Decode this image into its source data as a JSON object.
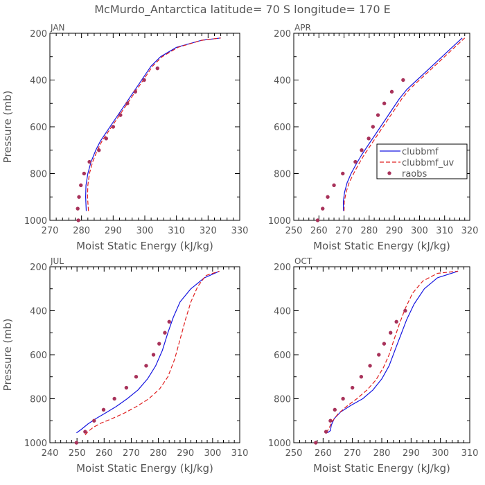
{
  "figure": {
    "title": "McMurdo_Antarctica   latitude= 70 S longitude= 170 E"
  },
  "colors": {
    "clubbmf": "#1515e0",
    "clubbmf_uv": "#e02020",
    "raobs": "#a8325a",
    "axis": "#000000",
    "text": "#555555"
  },
  "chart_data": [
    {
      "type": "line",
      "panel_label": "JAN",
      "xlabel": "Moist Static Energy (kJ/kg)",
      "ylabel": "Pressure (mb)",
      "xlim": [
        270,
        330
      ],
      "xticks": [
        270,
        280,
        290,
        300,
        310,
        320,
        330
      ],
      "ylim": [
        1000,
        200
      ],
      "yticks": [
        200,
        400,
        600,
        800,
        1000
      ],
      "show_legend": false,
      "series": [
        {
          "name": "clubbmf",
          "style": "solid",
          "x": [
            281.5,
            281.3,
            281.4,
            282,
            283,
            284.5,
            286,
            288,
            290,
            292,
            294,
            296,
            298,
            300,
            302,
            305,
            310,
            318,
            324
          ],
          "y": [
            960,
            900,
            850,
            800,
            750,
            700,
            660,
            620,
            580,
            540,
            500,
            460,
            420,
            380,
            340,
            300,
            260,
            230,
            220
          ]
        },
        {
          "name": "clubbmf_uv",
          "style": "dashed",
          "x": [
            282.2,
            281.9,
            282,
            282.5,
            283.5,
            285,
            286.5,
            288.5,
            290.5,
            292.5,
            294.5,
            296.5,
            298.5,
            300.5,
            302.5,
            305.5,
            310.5,
            318,
            324
          ],
          "y": [
            960,
            900,
            850,
            800,
            750,
            700,
            660,
            620,
            580,
            540,
            500,
            460,
            420,
            380,
            340,
            300,
            260,
            230,
            220
          ]
        },
        {
          "name": "raobs",
          "style": "markers",
          "x": [
            279,
            278.8,
            279.2,
            279.8,
            280.8,
            282.5,
            285.5,
            287.8,
            290,
            292.3,
            294.5,
            297,
            299.8,
            304
          ],
          "y": [
            1000,
            950,
            900,
            850,
            800,
            750,
            700,
            650,
            600,
            550,
            500,
            450,
            400,
            350
          ]
        }
      ]
    },
    {
      "type": "line",
      "panel_label": "APR",
      "xlabel": "Moist Static Energy (kJ/kg)",
      "ylabel": "",
      "xlim": [
        250,
        320
      ],
      "xticks": [
        250,
        260,
        270,
        280,
        290,
        300,
        310,
        320
      ],
      "ylim": [
        1000,
        200
      ],
      "yticks": [
        200,
        400,
        600,
        800,
        1000
      ],
      "show_legend": true,
      "legend_position": "right",
      "series": [
        {
          "name": "clubbmf",
          "style": "solid",
          "x": [
            269.8,
            269.7,
            270.2,
            271.2,
            272.8,
            274.8,
            277,
            279.5,
            282,
            284.5,
            287,
            289.5,
            292,
            295,
            299,
            305,
            312,
            317
          ],
          "y": [
            960,
            920,
            880,
            840,
            800,
            760,
            720,
            680,
            640,
            600,
            560,
            520,
            480,
            440,
            400,
            340,
            270,
            220
          ]
        },
        {
          "name": "clubbmf_uv",
          "style": "dashed",
          "x": [
            270,
            270.1,
            270.8,
            272,
            273.8,
            275.8,
            278,
            280.5,
            283,
            285.5,
            288,
            290.5,
            293,
            296,
            300,
            306,
            313,
            318
          ],
          "y": [
            960,
            920,
            880,
            840,
            800,
            760,
            720,
            680,
            640,
            600,
            560,
            520,
            480,
            440,
            400,
            340,
            270,
            220
          ]
        },
        {
          "name": "raobs",
          "style": "markers",
          "x": [
            259.5,
            261.5,
            263.5,
            266,
            269.5,
            274.5,
            277,
            279.8,
            281.5,
            283.5,
            286,
            289,
            293.5
          ],
          "y": [
            1000,
            950,
            900,
            850,
            800,
            750,
            700,
            650,
            600,
            550,
            500,
            450,
            400
          ]
        }
      ]
    },
    {
      "type": "line",
      "panel_label": "JUL",
      "xlabel": "Moist Static Energy (kJ/kg)",
      "ylabel": "Pressure (mb)",
      "xlim": [
        240,
        310
      ],
      "xticks": [
        240,
        250,
        260,
        270,
        280,
        290,
        300,
        310
      ],
      "ylim": [
        1000,
        200
      ],
      "yticks": [
        200,
        400,
        600,
        800,
        1000
      ],
      "show_legend": false,
      "series": [
        {
          "name": "clubbmf",
          "style": "solid",
          "x": [
            249.8,
            251.5,
            254,
            257,
            260.5,
            264.5,
            268.5,
            272.5,
            276,
            279,
            281.5,
            283.5,
            285.5,
            288,
            292,
            297,
            302.5
          ],
          "y": [
            955,
            940,
            915,
            890,
            865,
            835,
            800,
            760,
            710,
            650,
            580,
            500,
            430,
            360,
            300,
            250,
            220
          ]
        },
        {
          "name": "clubbmf_uv",
          "style": "dashed",
          "x": [
            253,
            254,
            256,
            259,
            263,
            267.5,
            272,
            276.5,
            280.5,
            283.5,
            286,
            288,
            290,
            292,
            294.5,
            297.5,
            302.5
          ],
          "y": [
            965,
            950,
            930,
            910,
            890,
            865,
            835,
            800,
            755,
            700,
            620,
            530,
            440,
            360,
            290,
            240,
            220
          ]
        },
        {
          "name": "raobs",
          "style": "markers",
          "x": [
            249.8,
            253,
            256.3,
            259.8,
            263.8,
            268.2,
            271.8,
            275.5,
            278.2,
            280.3,
            282.4,
            284
          ],
          "y": [
            1000,
            950,
            900,
            850,
            800,
            750,
            700,
            650,
            600,
            550,
            500,
            450
          ]
        }
      ]
    },
    {
      "type": "line",
      "panel_label": "OCT",
      "xlabel": "Moist Static Energy (kJ/kg)",
      "ylabel": "",
      "xlim": [
        250,
        310
      ],
      "xticks": [
        250,
        260,
        270,
        280,
        290,
        300,
        310
      ],
      "ylim": [
        1000,
        200
      ],
      "yticks": [
        200,
        400,
        600,
        800,
        1000
      ],
      "show_legend": false,
      "series": [
        {
          "name": "clubbmf",
          "style": "solid",
          "x": [
            261.5,
            262.5,
            262.8,
            263.8,
            266,
            269.5,
            273.5,
            277,
            280,
            282.5,
            284.5,
            286.5,
            288.5,
            291,
            294.5,
            299,
            306
          ],
          "y": [
            955,
            945,
            920,
            890,
            860,
            830,
            800,
            760,
            710,
            650,
            580,
            510,
            440,
            370,
            300,
            250,
            220
          ]
        },
        {
          "name": "clubbmf_uv",
          "style": "dashed",
          "x": [
            261,
            262,
            263,
            265,
            268,
            271.5,
            275,
            278,
            280.5,
            282.5,
            284.2,
            286,
            288,
            290.5,
            294,
            299,
            306
          ],
          "y": [
            955,
            935,
            905,
            870,
            835,
            800,
            760,
            715,
            660,
            600,
            530,
            460,
            390,
            320,
            265,
            230,
            220
          ]
        },
        {
          "name": "raobs",
          "style": "markers",
          "x": [
            257.5,
            261,
            262.5,
            264,
            266.8,
            270,
            273,
            276,
            279,
            280.8,
            283,
            285,
            288
          ],
          "y": [
            1000,
            950,
            900,
            850,
            800,
            750,
            700,
            650,
            600,
            550,
            500,
            450,
            400
          ]
        }
      ]
    }
  ]
}
